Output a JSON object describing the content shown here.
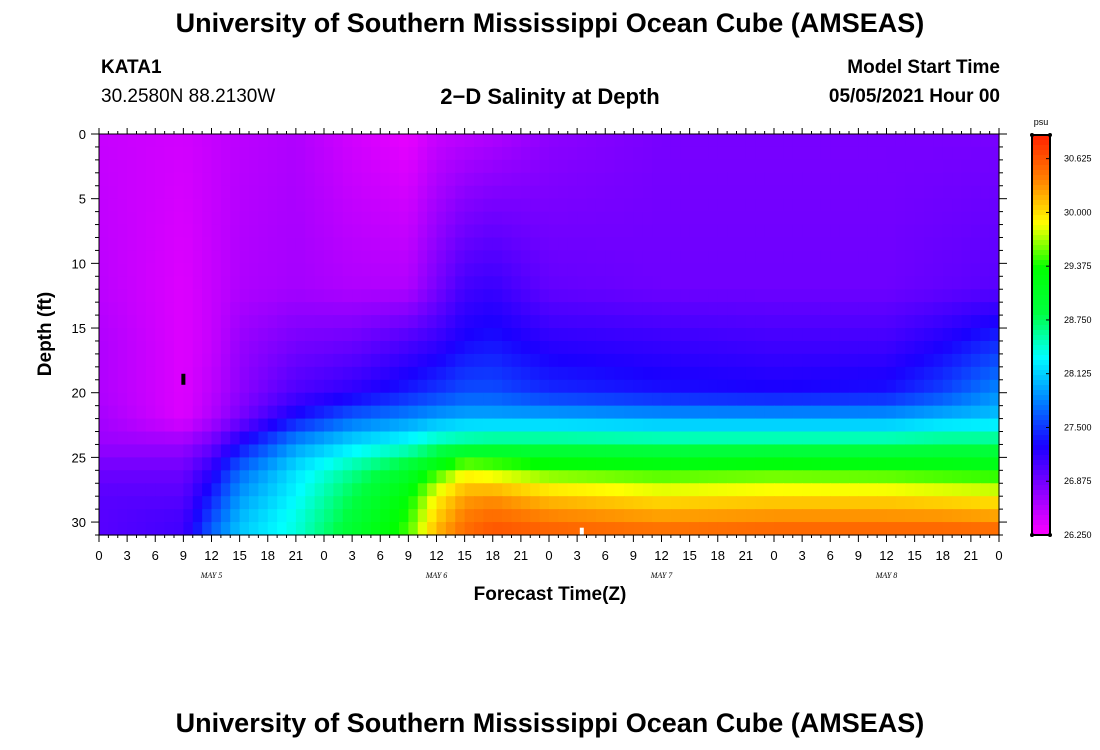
{
  "header": {
    "top_title": "University of Southern Mississippi Ocean Cube (AMSEAS)",
    "bottom_title": "University of Southern Mississippi Ocean Cube (AMSEAS)",
    "station_id": "KATA1",
    "station_coords": "30.2580N  88.2130W",
    "chart_title": "2−D Salinity at Depth",
    "model_start_label": "Model Start Time",
    "model_start_value": "05/05/2021 Hour 00"
  },
  "chart_data": {
    "type": "heatmap",
    "title": "2−D Salinity at Depth",
    "xlabel": "Forecast Time(Z)",
    "ylabel": "Depth (ft)",
    "x_unit": "hours since 05/05/2021 00Z",
    "x_range": [
      0,
      96
    ],
    "x_tick_labels": [
      "0",
      "3",
      "6",
      "9",
      "12",
      "15",
      "18",
      "21",
      "0",
      "3",
      "6",
      "9",
      "12",
      "15",
      "18",
      "21",
      "0",
      "3",
      "6",
      "9",
      "12",
      "15",
      "18",
      "21",
      "0",
      "3",
      "6",
      "9",
      "12",
      "15",
      "18",
      "21",
      "0"
    ],
    "day_labels": [
      {
        "label": "MAY 5",
        "hour": 12
      },
      {
        "label": "MAY 6",
        "hour": 36
      },
      {
        "label": "MAY 7",
        "hour": 60
      },
      {
        "label": "MAY 8",
        "hour": 84
      }
    ],
    "y_range": [
      0,
      31
    ],
    "y_inverted": true,
    "y_tick_labels": [
      "0",
      "5",
      "10",
      "15",
      "20",
      "25",
      "30"
    ],
    "y_ticks": [
      0,
      5,
      10,
      15,
      20,
      25,
      30
    ],
    "colorbar": {
      "unit": "psu",
      "min": 26.25,
      "max": 30.9,
      "tick_labels": [
        "30.625",
        "30.000",
        "29.375",
        "28.750",
        "28.125",
        "27.500",
        "26.875",
        "26.250"
      ],
      "tick_values": [
        30.625,
        30.0,
        29.375,
        28.75,
        28.125,
        27.5,
        26.875,
        26.25
      ],
      "colors": [
        "#ff00ff",
        "#8a00ff",
        "#1a00ff",
        "#0080ff",
        "#00ffff",
        "#00ff40",
        "#00ff00",
        "#ffff00",
        "#ff8000",
        "#ff2000"
      ]
    },
    "z_hours": [
      0,
      9,
      12,
      15,
      21,
      27,
      33,
      36,
      39,
      42,
      48,
      60,
      72,
      84,
      90,
      96
    ],
    "z_depths": [
      0,
      12,
      16,
      20,
      22,
      24,
      26,
      28,
      30,
      31
    ],
    "z_values": [
      [
        26.5,
        26.55,
        26.6,
        26.6,
        26.65,
        26.7,
        26.9,
        27.0,
        27.0,
        27.0
      ],
      [
        26.45,
        26.4,
        26.4,
        26.4,
        26.4,
        26.7,
        26.9,
        27.0,
        27.1,
        27.1
      ],
      [
        26.5,
        26.5,
        26.5,
        26.55,
        26.6,
        26.9,
        27.2,
        27.4,
        27.6,
        27.7
      ],
      [
        26.55,
        26.6,
        26.7,
        26.75,
        26.85,
        27.3,
        27.7,
        27.9,
        28.05,
        28.1
      ],
      [
        26.6,
        26.65,
        26.85,
        27.05,
        27.35,
        27.9,
        28.2,
        28.3,
        28.4,
        28.4
      ],
      [
        26.45,
        26.6,
        26.9,
        27.2,
        27.7,
        28.2,
        28.6,
        28.8,
        28.9,
        29.0
      ],
      [
        26.35,
        26.6,
        27.05,
        27.4,
        27.85,
        28.4,
        29.0,
        29.3,
        29.45,
        29.5
      ],
      [
        26.5,
        26.85,
        27.15,
        27.5,
        27.95,
        28.6,
        29.4,
        29.9,
        30.1,
        30.2
      ],
      [
        26.55,
        27.1,
        27.3,
        27.6,
        28.0,
        28.7,
        29.8,
        30.25,
        30.45,
        30.5
      ],
      [
        26.6,
        27.15,
        27.35,
        27.6,
        28.0,
        28.75,
        29.7,
        30.3,
        30.55,
        30.65
      ],
      [
        26.75,
        26.95,
        27.2,
        27.45,
        28.0,
        28.75,
        29.5,
        30.1,
        30.45,
        30.6
      ],
      [
        26.85,
        26.9,
        27.15,
        27.35,
        27.95,
        28.7,
        29.4,
        29.95,
        30.35,
        30.55
      ],
      [
        26.85,
        26.9,
        27.1,
        27.3,
        27.95,
        28.7,
        29.45,
        30.0,
        30.4,
        30.6
      ],
      [
        26.85,
        26.9,
        27.1,
        27.35,
        27.95,
        28.7,
        29.4,
        30.0,
        30.4,
        30.6
      ],
      [
        26.85,
        26.95,
        27.25,
        27.55,
        28.05,
        28.75,
        29.35,
        29.95,
        30.4,
        30.6
      ],
      [
        26.85,
        27.0,
        27.45,
        27.85,
        28.1,
        28.75,
        29.3,
        29.9,
        30.35,
        30.6
      ]
    ],
    "markers": [
      {
        "color": "#000000",
        "hour": 9,
        "depth": 19
      },
      {
        "color": "#ffffff",
        "hour": 51.5,
        "depth": 30.9
      }
    ]
  }
}
